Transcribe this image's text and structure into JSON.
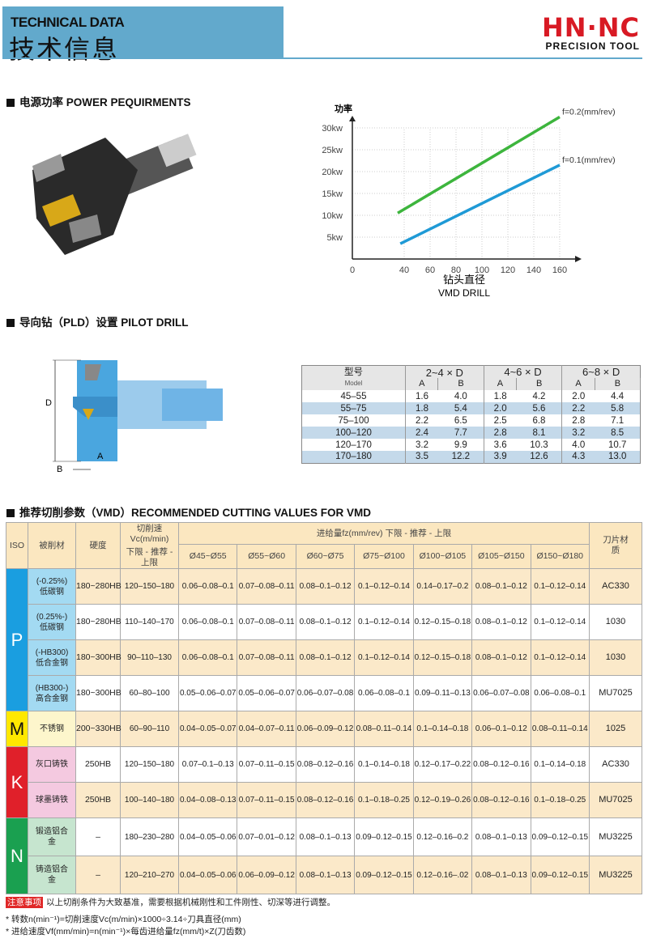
{
  "header": {
    "title_en": "TECHNICAL DATA",
    "title_cn": "技术信息",
    "logo_main": "HN·NC",
    "logo_sub": "PRECISION TOOL"
  },
  "sections": {
    "power": "电源功率 POWER PEQUIRMENTS",
    "pilot": "导向钻（PLD）设置 PILOT DRILL",
    "cutting": "推荐切削参数（VMD）RECOMMENDED CUTTING VALUES FOR VMD"
  },
  "colors": {
    "header_blue": "#62a9cc",
    "logo_red": "#d81a24",
    "series_green": "#3db53d",
    "series_blue": "#1f9ad6",
    "iso_P": "#1a9ee0",
    "iso_M": "#ffe800",
    "iso_K": "#e0202a",
    "iso_N": "#1aa050"
  },
  "chart_data": {
    "type": "line",
    "y_title": "功率",
    "xlabel_cn": "钻头直径",
    "xlabel_en": "VMD DRILL",
    "xlim": [
      0,
      160
    ],
    "ylim": [
      0,
      30
    ],
    "x_ticks": [
      "0",
      "40",
      "60",
      "80",
      "100",
      "120",
      "140",
      "160"
    ],
    "y_ticks": [
      "5kw",
      "10kw",
      "15kw",
      "20kw",
      "25kw",
      "30kw"
    ],
    "grid": true,
    "series": [
      {
        "name": "f=0.2(mm/rev)",
        "color": "#3db53d",
        "x": [
          35,
          160
        ],
        "y": [
          10.5,
          32.5
        ]
      },
      {
        "name": "f=0.1(mm/rev)",
        "color": "#1f9ad6",
        "x": [
          37,
          160
        ],
        "y": [
          3.5,
          21.5
        ]
      }
    ]
  },
  "pilot_labels": {
    "d": "D",
    "a": "A",
    "b": "B"
  },
  "pilot_table": {
    "model_cn": "型号",
    "model_en": "Model",
    "groups": [
      "2~4 × D",
      "4~6 × D",
      "6~8 × D"
    ],
    "sub": [
      "A",
      "B"
    ],
    "rows": [
      [
        "45–55",
        "1.6",
        "4.0",
        "1.8",
        "4.2",
        "2.0",
        "4.4"
      ],
      [
        "55–75",
        "1.8",
        "5.4",
        "2.0",
        "5.6",
        "2.2",
        "5.8"
      ],
      [
        "75–100",
        "2.2",
        "6.5",
        "2.5",
        "6.8",
        "2.8",
        "7.1"
      ],
      [
        "100–120",
        "2.4",
        "7.7",
        "2.8",
        "8.1",
        "3.2",
        "8.5"
      ],
      [
        "120–170",
        "3.2",
        "9.9",
        "3.6",
        "10.3",
        "4.0",
        "10.7"
      ],
      [
        "170–180",
        "3.5",
        "12.2",
        "3.9",
        "12.6",
        "4.3",
        "13.0"
      ]
    ]
  },
  "cut_table": {
    "h_iso": "ISO",
    "h_mat": "被削材",
    "h_hard": "硬度",
    "h_vc1": "切削速Vc(m/min)",
    "h_vc2": "下限 - 推荐 - 上限",
    "h_fz": "进给量fz(mm/rev) 下限 - 推荐 - 上限",
    "h_blade": "刀片材质",
    "dia": [
      "Ø45~Ø55",
      "Ø55~Ø60",
      "Ø60~Ø75",
      "Ø75~Ø100",
      "Ø100~Ø105",
      "Ø105~Ø150",
      "Ø150~Ø180"
    ],
    "groups": [
      {
        "iso": "P",
        "rows": [
          [
            "(-0.25%) 低碳钢",
            "180~280HB",
            "120–150–180",
            "0.06–0.08–0.1",
            "0.07–0.08–0.11",
            "0.08–0.1–0.12",
            "0.1–0.12–0.14",
            "0.14–0.17–0.2",
            "0.08–0.1–0.12",
            "0.1–0.12–0.14",
            "AC330"
          ],
          [
            "(0.25%-) 低碳钢",
            "180~280HB",
            "110–140–170",
            "0.06–0.08–0.1",
            "0.07–0.08–0.11",
            "0.08–0.1–0.12",
            "0.1–0.12–0.14",
            "0.12–0.15–0.18",
            "0.08–0.1–0.12",
            "0.1–0.12–0.14",
            "1030"
          ],
          [
            "(-HB300) 低合金钢",
            "180~300HB",
            "90–110–130",
            "0.06–0.08–0.1",
            "0.07–0.08–0.11",
            "0.08–0.1–0.12",
            "0.1–0.12–0.14",
            "0.12–0.15–0.18",
            "0.08–0.1–0.12",
            "0.1–0.12–0.14",
            "1030"
          ],
          [
            "(HB300-) 高合金钢",
            "180~300HB",
            "60–80–100",
            "0.05–0.06–0.07",
            "0.05–0.06–0.07",
            "0.06–0.07–0.08",
            "0.06–0.08–0.1",
            "0.09–0.11–0.13",
            "0.06–0.07–0.08",
            "0.06–0.08–0.1",
            "MU7025"
          ]
        ]
      },
      {
        "iso": "M",
        "rows": [
          [
            "不锈钢",
            "200~330HB",
            "60–90–110",
            "0.04–0.05–0.07",
            "0.04–0.07–0.11",
            "0.06–0.09–0.12",
            "0.08–0.11–0.14",
            "0.1–0.14–0.18",
            "0.06–0.1–0.12",
            "0.08–0.11–0.14",
            "1025"
          ]
        ]
      },
      {
        "iso": "K",
        "rows": [
          [
            "灰口铸铁",
            "250HB",
            "120–150–180",
            "0.07–0.1–0.13",
            "0.07–0.11–0.15",
            "0.08–0.12–0.16",
            "0.1–0.14–0.18",
            "0.12–0.17–0.22",
            "0.08–0.12–0.16",
            "0.1–0.14–0.18",
            "AC330"
          ],
          [
            "球墨铸铁",
            "250HB",
            "100–140–180",
            "0.04–0.08–0.13",
            "0.07–0.11–0.15",
            "0.08–0.12–0.16",
            "0.1–0.18–0.25",
            "0.12–0.19–0.26",
            "0.08–0.12–0.16",
            "0.1–0.18–0.25",
            "MU7025"
          ]
        ]
      },
      {
        "iso": "N",
        "rows": [
          [
            "锻造铝合金",
            "–",
            "180–230–280",
            "0.04–0.05–0.06",
            "0.07–0.01–0.12",
            "0.08–0.1–0.13",
            "0.09–0.12–0.15",
            "0.12–0.16–0.2",
            "0.08–0.1–0.13",
            "0.09–0.12–0.15",
            "MU3225"
          ],
          [
            "铸造铝合金",
            "–",
            "120–210–270",
            "0.04–0.05–0.06",
            "0.06–0.09–0.12",
            "0.08–0.1–0.13",
            "0.09–0.12–0.15",
            "0.12–0.16–.02",
            "0.08–0.1–0.13",
            "0.09–0.12–0.15",
            "MU3225"
          ]
        ]
      }
    ]
  },
  "notes": {
    "tag": "注意事项",
    "text": "以上切削条件为大致基准，需要根据机械刚性和工件刚性、切深等进行调整。",
    "line1": "* 转数n(min⁻¹)=切削速度Vc(m/min)×1000÷3.14÷刀具直径(mm)",
    "line2": "* 进给速度Vf(mm/min)=n(min⁻¹)×每齿进给量fz(mm/t)×Z(刀齿数)"
  }
}
